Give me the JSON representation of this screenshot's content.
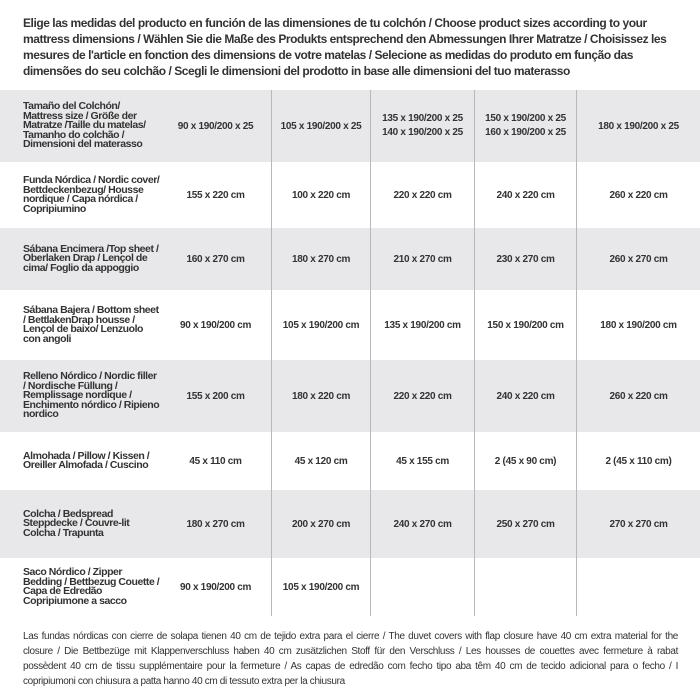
{
  "intro": "Elige las medidas del producto en función de las dimensiones de tu colchón / Choose product sizes according to your mattress dimensions / Wählen Sie die Maße des Produkts entsprechend den Abmessungen Ihrer Matratze / Choisissez les mesures de l'article en fonction des dimensions de votre matelas / Selecione as medidas do produto em função das dimensões do seu colchão / Scegli le dimensioni del prodotto in base alle dimensioni del tuo materasso",
  "header": {
    "label": "Tamaño del Colchón/ Mattress size / Größe der Matratze /Taille du matelas/ Tamanho do colchão / Dimensioni del materasso",
    "cols": [
      [
        "90 x 190/200 x 25"
      ],
      [
        "105 x 190/200 x 25"
      ],
      [
        "135 x 190/200 x 25",
        "140 x 190/200 x 25"
      ],
      [
        "150 x 190/200 x 25",
        "160 x 190/200 x 25"
      ],
      [
        "180 x 190/200 x 25"
      ]
    ]
  },
  "rows": [
    {
      "label": "Funda Nórdica /  Nordic cover/ Bettdeckenbezug/ Housse nordique  / Capa nórdica / Copripiumino",
      "values": [
        "155 x 220 cm",
        "100 x 220 cm",
        "220 x 220 cm",
        "240 x 220 cm",
        "260 x 220 cm"
      ]
    },
    {
      "label": "Sábana Encimera /Top sheet / Oberlaken Drap / Lençol de cima/ Foglio da appoggio",
      "values": [
        "160 x 270 cm",
        "180 x 270 cm",
        "210 x 270 cm",
        "230 x 270 cm",
        "260 x 270 cm"
      ]
    },
    {
      "label": "Sábana Bajera / Bottom sheet / BettlakenDrap housse / Lençol de baixo/ Lenzuolo con angoli",
      "values": [
        "90 x 190/200 cm",
        "105 x 190/200 cm",
        "135 x 190/200 cm",
        "150 x 190/200 cm",
        "180 x 190/200 cm"
      ]
    },
    {
      "label": "Relleno Nórdico / Nordic filler / Nordische Füllung / Remplissage nordique / Enchimento nórdico / Ripieno nordico",
      "values": [
        "155 x 200 cm",
        "180 x 220 cm",
        "220 x 220 cm",
        "240 x 220 cm",
        "260 x 220 cm"
      ]
    },
    {
      "label": "Almohada  / Pillow / Kissen / Oreiller Almofada / Cuscino",
      "values": [
        "45 x 110 cm",
        "45 x 120 cm",
        "45 x 155 cm",
        "2 (45 x 90 cm)",
        "2 (45 x 110 cm)"
      ]
    },
    {
      "label": "Colcha / Bedspread Steppdecke / Couvre-lit Colcha / Trapunta",
      "values": [
        "180 x 270 cm",
        "200 x 270 cm",
        "240 x 270 cm",
        "250 x 270 cm",
        "270 x 270 cm"
      ]
    },
    {
      "label": "Saco Nórdico / Zipper Bedding / Bettbezug Couette  / Capa de Edredão Copripiumone a sacco",
      "values": [
        "90 x 190/200 cm",
        "105 x 190/200 cm",
        "",
        "",
        ""
      ]
    }
  ],
  "footnote": "Las fundas nórdicas con cierre de solapa tienen 40 cm de tejido extra para el cierre  /  The duvet covers with flap closure have 40 cm extra material for the closure / Die Bettbezüge mit Klappenverschluss haben 40 cm zusätzlichen Stoff für den Verschluss / Les housses de couettes avec fermeture à rabat possèdent 40 cm de tissu supplémentaire pour la fermeture / As capas de edredão com fecho tipo aba têm 40 cm de tecido adicional para o fecho / I copripiumoni con chiusura a patta hanno 40 cm di tessuto extra per la chiusura"
}
